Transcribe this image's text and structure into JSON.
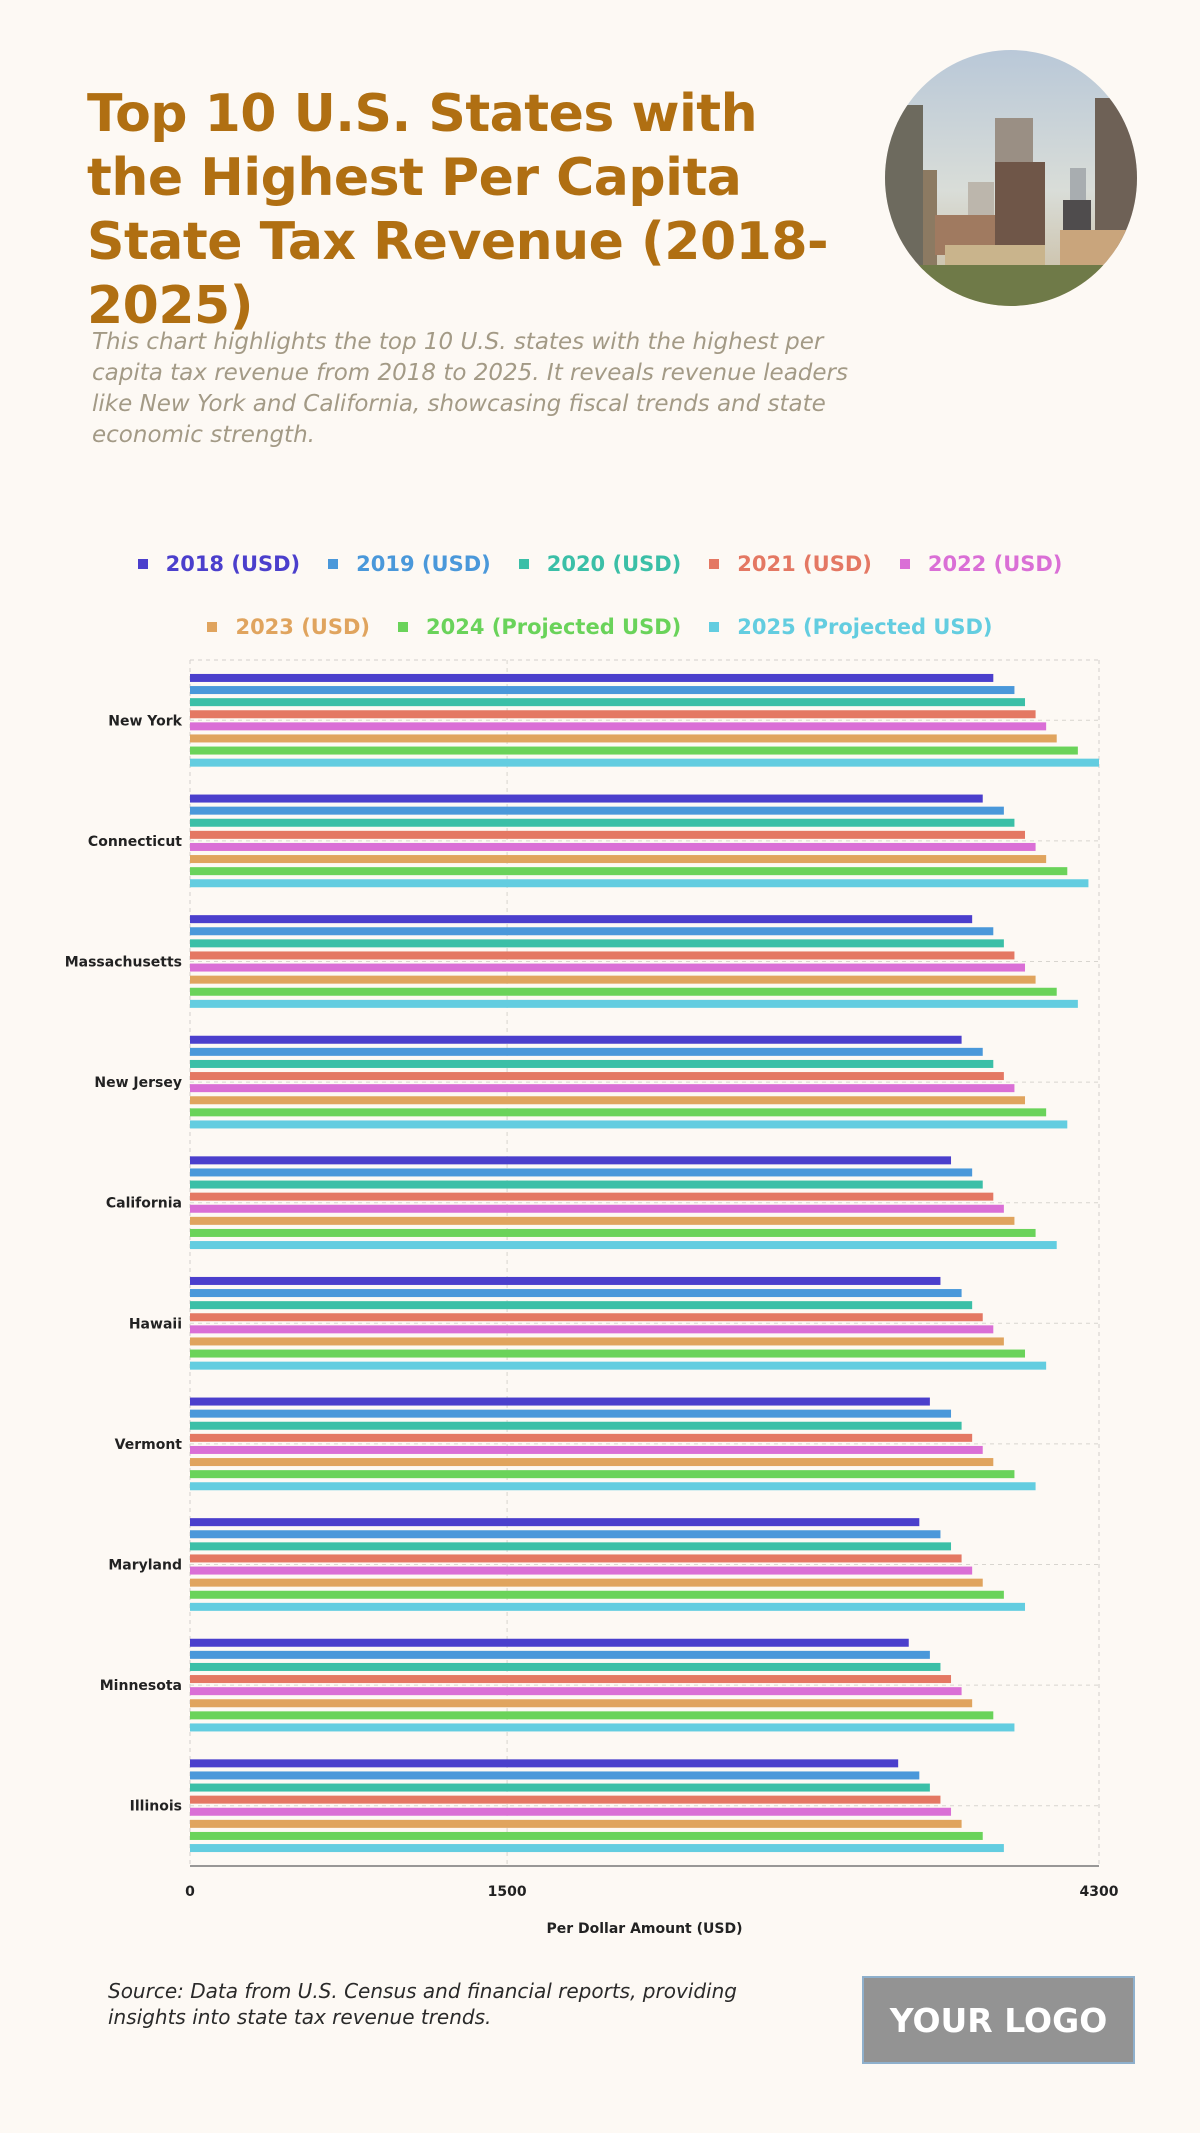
{
  "header": {
    "title": "Top 10 U.S. States with the Highest Per Capita State Tax Revenue (2018-2025)",
    "subtitle": "This chart highlights the top 10 U.S. states with the highest per capita tax revenue from 2018 to 2025. It reveals revenue leaders like New York and California, showcasing fiscal trends and state economic strength.",
    "image_icon": "city-skyline-photo"
  },
  "footer": {
    "source": "Source: Data from U.S. Census and financial reports, providing insights into state tax revenue trends.",
    "logo": "YOUR LOGO"
  },
  "colors": {
    "title": "#b06f12",
    "background": "#fdf9f4",
    "subtitle": "#a39a86"
  },
  "chart_data": {
    "type": "bar",
    "orientation": "horizontal",
    "title": "Top 10 U.S. States with the Highest Per Capita State Tax Revenue (2018-2025)",
    "xlabel": "Per Dollar Amount (USD)",
    "ylabel": "",
    "xlim": [
      0,
      4300
    ],
    "xticks": [
      "0",
      "1500",
      "4300"
    ],
    "xtick_values": [
      0,
      1500,
      4300
    ],
    "grid": true,
    "legend_position": "top",
    "categories": [
      "New York",
      "Connecticut",
      "Massachusetts",
      "New Jersey",
      "California",
      "Hawaii",
      "Vermont",
      "Maryland",
      "Minnesota",
      "Illinois"
    ],
    "series": [
      {
        "name": "2018 (USD)",
        "color": "#4b3fcc",
        "values": [
          3800,
          3750,
          3700,
          3650,
          3600,
          3550,
          3500,
          3450,
          3400,
          3350
        ]
      },
      {
        "name": "2019 (USD)",
        "color": "#4a98da",
        "values": [
          3900,
          3850,
          3800,
          3750,
          3700,
          3650,
          3600,
          3550,
          3500,
          3450
        ]
      },
      {
        "name": "2020 (USD)",
        "color": "#3bbfa7",
        "values": [
          3950,
          3900,
          3850,
          3800,
          3750,
          3700,
          3650,
          3600,
          3550,
          3500
        ]
      },
      {
        "name": "2021 (USD)",
        "color": "#e47863",
        "values": [
          4000,
          3950,
          3900,
          3850,
          3800,
          3750,
          3700,
          3650,
          3600,
          3550
        ]
      },
      {
        "name": "2022 (USD)",
        "color": "#da6fd6",
        "values": [
          4050,
          4000,
          3950,
          3900,
          3850,
          3800,
          3750,
          3700,
          3650,
          3600
        ]
      },
      {
        "name": "2023 (USD)",
        "color": "#e0a45e",
        "values": [
          4100,
          4050,
          4000,
          3950,
          3900,
          3850,
          3800,
          3750,
          3700,
          3650
        ]
      },
      {
        "name": "2024 (Projected USD)",
        "color": "#6ad35a",
        "values": [
          4200,
          4150,
          4100,
          4050,
          4000,
          3950,
          3900,
          3850,
          3800,
          3750
        ]
      },
      {
        "name": "2025 (Projected USD)",
        "color": "#63cde0",
        "values": [
          4300,
          4250,
          4200,
          4150,
          4100,
          4050,
          4000,
          3950,
          3900,
          3850
        ]
      }
    ]
  }
}
